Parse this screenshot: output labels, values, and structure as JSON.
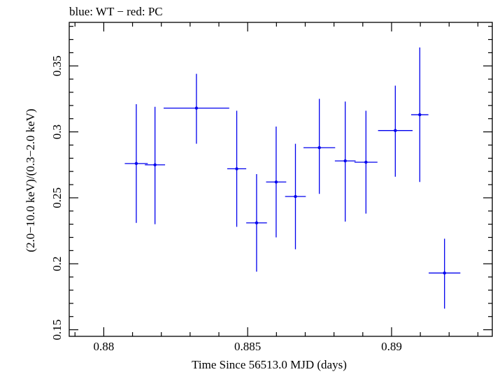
{
  "chart_data": {
    "type": "scatter",
    "title": "blue: WT − red: PC",
    "xlabel": "Time Since 56513.0 MJD (days)",
    "ylabel": "(2.0−10.0 keV)/(0.3−2.0 keV)",
    "xlim": [
      0.8788,
      0.8935
    ],
    "ylim": [
      0.145,
      0.383
    ],
    "xticks": [
      {
        "value": 0.88,
        "label": "0.88"
      },
      {
        "value": 0.885,
        "label": "0.885"
      },
      {
        "value": 0.89,
        "label": "0.89"
      }
    ],
    "xminor_step": 0.001,
    "yticks": [
      {
        "value": 0.15,
        "label": "0.15"
      },
      {
        "value": 0.2,
        "label": "0.2"
      },
      {
        "value": 0.25,
        "label": "0.25"
      },
      {
        "value": 0.3,
        "label": "0.3"
      },
      {
        "value": 0.35,
        "label": "0.35"
      }
    ],
    "yminor_step": 0.01,
    "grid": false,
    "series": [
      {
        "color": "#0000ee",
        "points": [
          {
            "x": 0.88113,
            "xerr": 0.0004,
            "y": 0.276,
            "ylo": 0.231,
            "yhi": 0.321
          },
          {
            "x": 0.88178,
            "xerr": 0.00035,
            "y": 0.275,
            "ylo": 0.23,
            "yhi": 0.319
          },
          {
            "x": 0.88322,
            "xerr": 0.00114,
            "y": 0.318,
            "ylo": 0.291,
            "yhi": 0.344
          },
          {
            "x": 0.88462,
            "xerr": 0.00033,
            "y": 0.272,
            "ylo": 0.228,
            "yhi": 0.316
          },
          {
            "x": 0.88531,
            "xerr": 0.00036,
            "y": 0.231,
            "ylo": 0.194,
            "yhi": 0.268
          },
          {
            "x": 0.88599,
            "xerr": 0.00035,
            "y": 0.262,
            "ylo": 0.22,
            "yhi": 0.304
          },
          {
            "x": 0.88666,
            "xerr": 0.00036,
            "y": 0.251,
            "ylo": 0.211,
            "yhi": 0.291
          },
          {
            "x": 0.88749,
            "xerr": 0.00055,
            "y": 0.288,
            "ylo": 0.253,
            "yhi": 0.325
          },
          {
            "x": 0.88839,
            "xerr": 0.00036,
            "y": 0.278,
            "ylo": 0.232,
            "yhi": 0.323
          },
          {
            "x": 0.88911,
            "xerr": 0.0004,
            "y": 0.277,
            "ylo": 0.238,
            "yhi": 0.316
          },
          {
            "x": 0.89013,
            "xerr": 0.0006,
            "y": 0.301,
            "ylo": 0.266,
            "yhi": 0.335
          },
          {
            "x": 0.89098,
            "xerr": 0.0003,
            "y": 0.313,
            "ylo": 0.262,
            "yhi": 0.364
          },
          {
            "x": 0.89184,
            "xerr": 0.00055,
            "y": 0.193,
            "ylo": 0.166,
            "yhi": 0.219
          }
        ]
      }
    ]
  }
}
